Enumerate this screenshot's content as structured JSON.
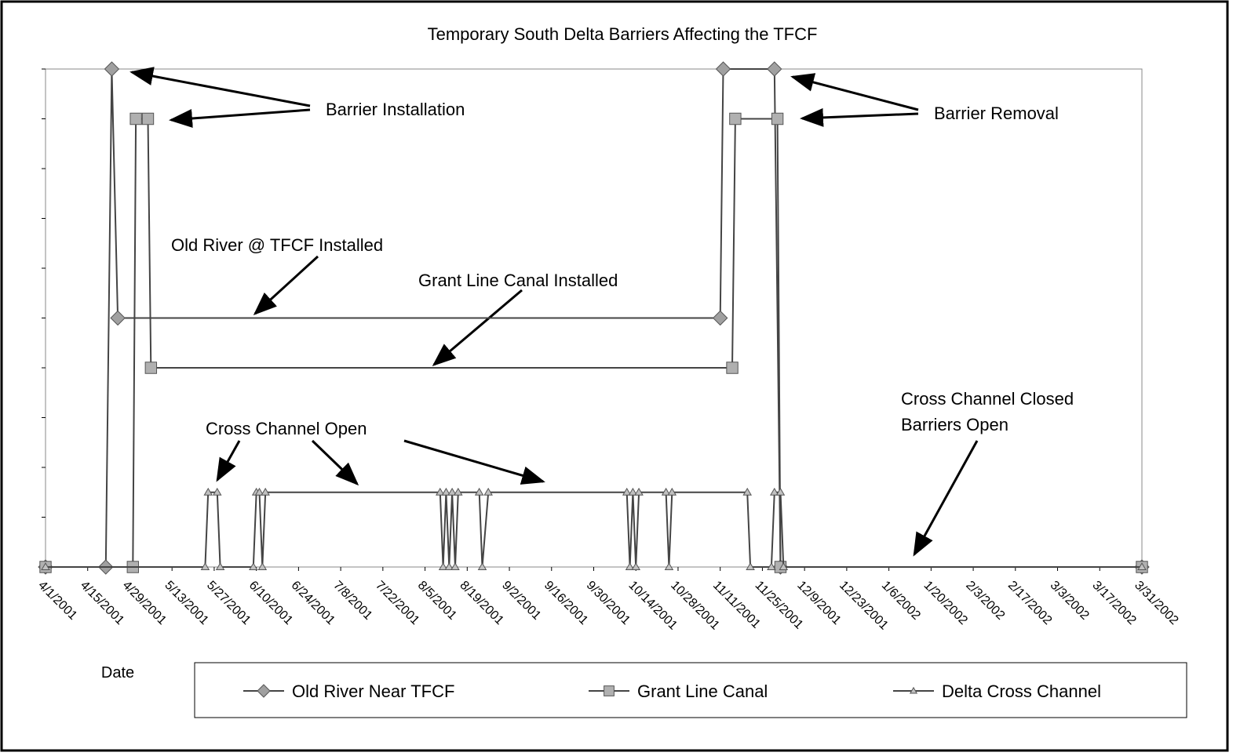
{
  "chart_data": {
    "type": "line",
    "title": "Temporary South Delta Barriers Affecting the TFCF",
    "x_label": "Date",
    "xlim": [
      "4/1/2001",
      "3/31/2002"
    ],
    "xticks": [
      "4/1/2001",
      "4/15/2001",
      "4/29/2001",
      "5/13/2001",
      "5/27/2001",
      "6/10/2001",
      "6/24/2001",
      "7/8/2001",
      "7/22/2001",
      "8/5/2001",
      "8/19/2001",
      "9/2/2001",
      "9/16/2001",
      "9/30/2001",
      "10/14/2001",
      "10/28/2001",
      "11/11/2001",
      "11/25/2001",
      "12/9/2001",
      "12/23/2001",
      "1/6/2002",
      "1/20/2002",
      "2/3/2002",
      "2/17/2002",
      "3/3/2002",
      "3/17/2002",
      "3/31/2002"
    ],
    "ylim": [
      0,
      10
    ],
    "yticks": [
      0,
      1,
      2,
      3,
      4,
      5,
      6,
      7,
      8,
      9,
      10
    ],
    "series": [
      {
        "name": "Old River Near TFCF",
        "color": "#a0a0a0",
        "marker": "diamond",
        "x": [
          "4/1/2001",
          "4/21/2001",
          "4/23/2001",
          "4/25/2001",
          "11/11/2001",
          "11/12/2001",
          "11/29/2001",
          "12/1/2001",
          "3/31/2002"
        ],
        "values": [
          0,
          0,
          10,
          5,
          5,
          10,
          10,
          0,
          0
        ]
      },
      {
        "name": "Grant Line Canal",
        "color": "#b0b0b0",
        "marker": "square",
        "x": [
          "4/1/2001",
          "4/30/2001",
          "5/1/2001",
          "5/5/2001",
          "5/6/2001",
          "11/15/2001",
          "11/16/2001",
          "11/30/2001",
          "12/1/2001",
          "3/31/2002"
        ],
        "values": [
          0,
          0,
          9,
          9,
          4,
          4,
          9,
          9,
          0,
          0
        ]
      },
      {
        "name": "Delta Cross Channel",
        "color": "#c0c0c0",
        "marker": "triangle",
        "x": [
          "4/1/2001",
          "5/24/2001",
          "5/25/2001",
          "5/28/2001",
          "5/29/2001",
          "6/9/2001",
          "6/10/2001",
          "6/11/2001",
          "6/12/2001",
          "6/13/2001",
          "8/10/2001",
          "8/11/2001",
          "8/12/2001",
          "8/13/2001",
          "8/14/2001",
          "8/15/2001",
          "8/16/2001",
          "8/23/2001",
          "8/24/2001",
          "8/26/2001",
          "10/11/2001",
          "10/12/2001",
          "10/13/2001",
          "10/14/2001",
          "10/15/2001",
          "10/24/2001",
          "10/25/2001",
          "10/26/2001",
          "11/20/2001",
          "11/21/2001",
          "11/28/2001",
          "11/29/2001",
          "12/1/2001",
          "12/2/2001",
          "3/31/2002"
        ],
        "values": [
          0,
          0,
          1.5,
          1.5,
          0,
          0,
          1.5,
          1.5,
          0,
          1.5,
          1.5,
          0,
          1.5,
          0,
          1.5,
          0,
          1.5,
          1.5,
          0,
          1.5,
          1.5,
          0,
          1.5,
          0,
          1.5,
          1.5,
          0,
          1.5,
          1.5,
          0,
          0,
          1.5,
          1.5,
          0,
          0
        ]
      }
    ],
    "annotations": [
      "Barrier Installation",
      "Barrier Removal",
      "Old River @ TFCF Installed",
      "Grant Line Canal Installed",
      "Cross Channel Open",
      "Cross Channel Closed",
      "Barriers Open"
    ]
  }
}
